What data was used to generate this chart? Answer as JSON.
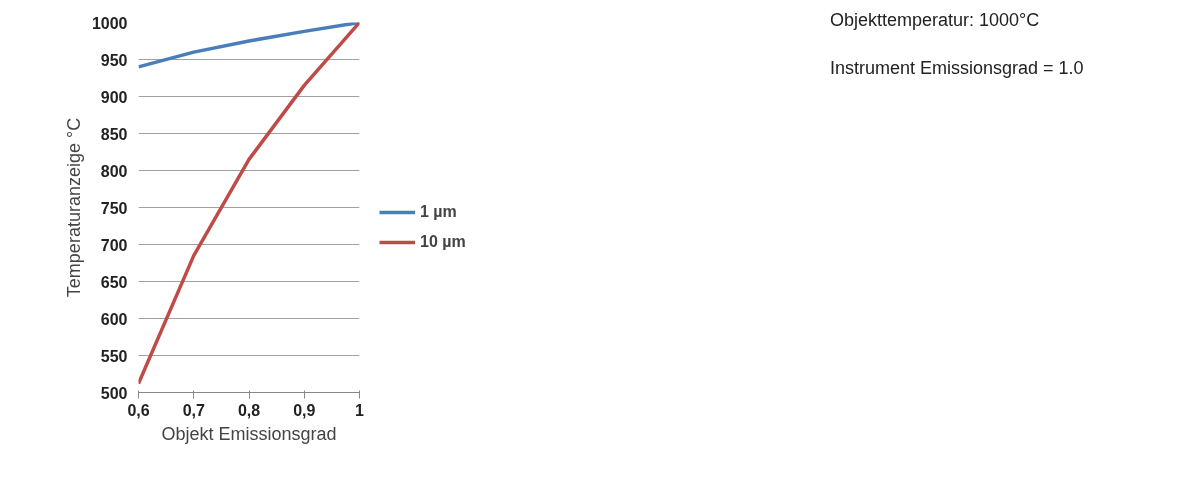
{
  "chart_data": {
    "type": "line",
    "xlabel": "Objekt Emissionsgrad",
    "ylabel": "Temperaturanzeige °C",
    "annotations": [
      "Objekttemperatur: 1000°C",
      "Instrument Emissionsgrad = 1.0"
    ],
    "x": [
      0.6,
      0.7,
      0.8,
      0.9,
      1
    ],
    "series": [
      {
        "name": "1 µm",
        "color": "#4a7ebb",
        "values": [
          940,
          960,
          975,
          988,
          1000
        ]
      },
      {
        "name": "10 µm",
        "color": "#be4b48",
        "values": [
          512,
          685,
          815,
          915,
          1000
        ]
      }
    ],
    "xlim": [
      0.6,
      1
    ],
    "xticks": [
      {
        "value": 0.6,
        "label": "0,6"
      },
      {
        "value": 0.7,
        "label": "0,7"
      },
      {
        "value": 0.8,
        "label": "0,8"
      },
      {
        "value": 0.9,
        "label": "0,9"
      },
      1
    ],
    "ylim": [
      500,
      1000
    ],
    "yticks": [
      500,
      550,
      600,
      650,
      700,
      750,
      800,
      850,
      900,
      950,
      1000
    ],
    "grid": "y",
    "legend": "right",
    "marker": "none",
    "line_style": "solid"
  }
}
